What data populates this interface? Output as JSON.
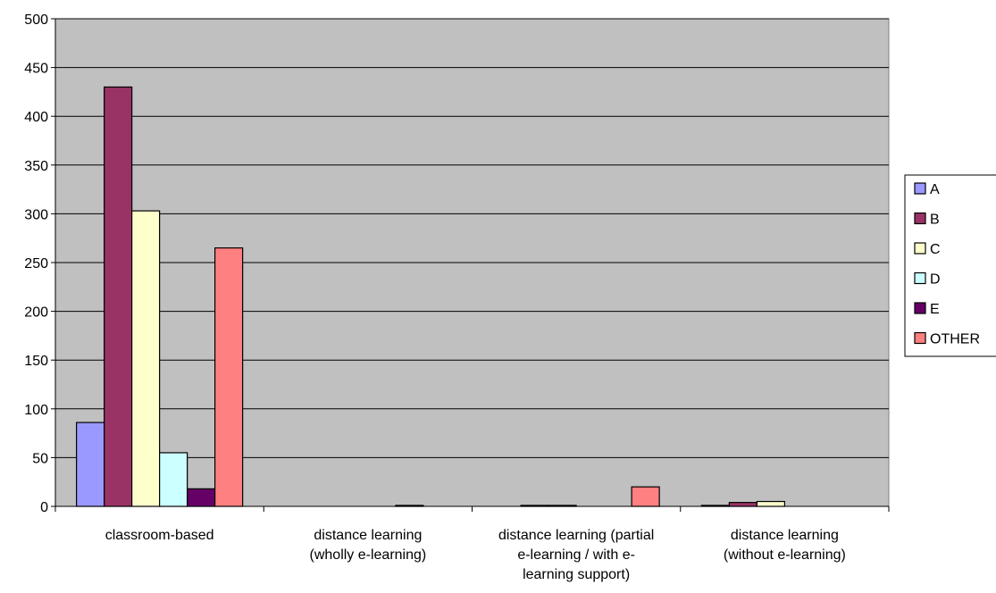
{
  "chart_data": {
    "type": "bar",
    "title": "",
    "xlabel": "",
    "ylabel": "",
    "ylim": [
      0,
      500
    ],
    "yticks": [
      0,
      50,
      100,
      150,
      200,
      250,
      300,
      350,
      400,
      450,
      500
    ],
    "grid": true,
    "legend_position": "right",
    "plot_background": "#C0C0C0",
    "categories": [
      [
        "classroom-based"
      ],
      [
        "distance learning",
        "(wholly e-learning)"
      ],
      [
        "distance learning (partial",
        "e-learning / with e-",
        "learning support)"
      ],
      [
        "distance learning",
        "(without e-learning)"
      ]
    ],
    "series": [
      {
        "name": "A",
        "color": "#9999FF",
        "values": [
          86,
          0,
          0,
          1
        ]
      },
      {
        "name": "B",
        "color": "#993366",
        "values": [
          430,
          0,
          1,
          4
        ]
      },
      {
        "name": "C",
        "color": "#FFFFCC",
        "values": [
          303,
          0,
          1,
          5
        ]
      },
      {
        "name": "D",
        "color": "#CCFFFF",
        "values": [
          55,
          0,
          0,
          0
        ]
      },
      {
        "name": "E",
        "color": "#660066",
        "values": [
          18,
          1,
          0,
          0
        ]
      },
      {
        "name": "OTHER",
        "color": "#FF8080",
        "values": [
          265,
          0,
          20,
          0
        ]
      }
    ]
  }
}
